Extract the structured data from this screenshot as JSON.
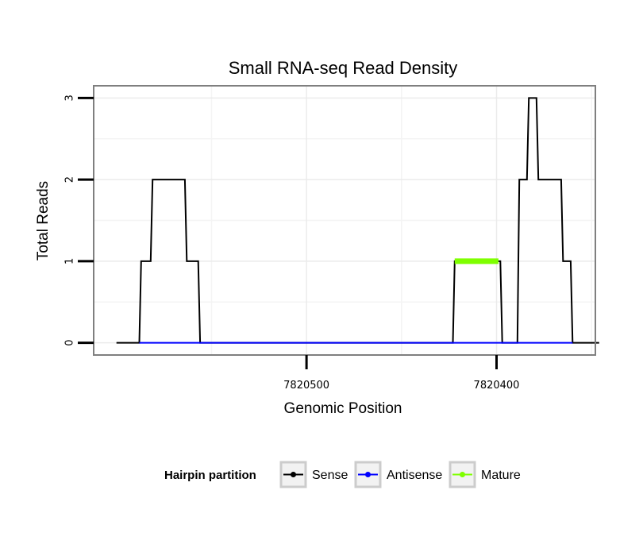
{
  "chart_data": {
    "type": "line",
    "title": "Small RNA-seq Read Density",
    "xlabel": "Genomic Position",
    "ylabel": "Total Reads",
    "xlim": [
      7820612,
      7820348
    ],
    "ylim": [
      -0.15,
      3.15
    ],
    "x_ticks": [
      {
        "value": 7820500,
        "label": "7820500"
      },
      {
        "value": 7820400,
        "label": "7820400"
      }
    ],
    "y_ticks": [
      {
        "value": 0,
        "label": "0"
      },
      {
        "value": 1,
        "label": "1"
      },
      {
        "value": 2,
        "label": "2"
      },
      {
        "value": 3,
        "label": "3"
      }
    ],
    "grid": true,
    "legend": {
      "title": "Hairpin partition",
      "position": "bottom",
      "entries": [
        "Sense",
        "Antisense",
        "Mature"
      ]
    },
    "series": [
      {
        "name": "Sense",
        "color": "#000000",
        "x": [
          7820600,
          7820588,
          7820587,
          7820582,
          7820581,
          7820564,
          7820563,
          7820557,
          7820556,
          7820522,
          7820521,
          7820503,
          7820469,
          7820423,
          7820422,
          7820398,
          7820397,
          7820393,
          7820389,
          7820388,
          7820384,
          7820383,
          7820379,
          7820378,
          7820366,
          7820365,
          7820361,
          7820360,
          7820346
        ],
        "y": [
          0,
          0,
          1,
          1,
          2,
          2,
          1,
          1,
          0,
          0,
          0,
          0,
          0,
          0,
          1,
          1,
          0,
          0,
          0,
          2,
          2,
          3,
          3,
          2,
          2,
          1,
          1,
          0,
          0
        ]
      },
      {
        "name": "Antisense",
        "color": "#0000ff",
        "x": [
          7820588,
          7820556,
          7820423,
          7820398,
          7820389,
          7820360
        ],
        "y": [
          0,
          0,
          0,
          0,
          0,
          0
        ]
      },
      {
        "name": "Mature",
        "color": "#7fff00",
        "x": [
          7820422,
          7820399
        ],
        "y": [
          1,
          1
        ]
      }
    ]
  }
}
